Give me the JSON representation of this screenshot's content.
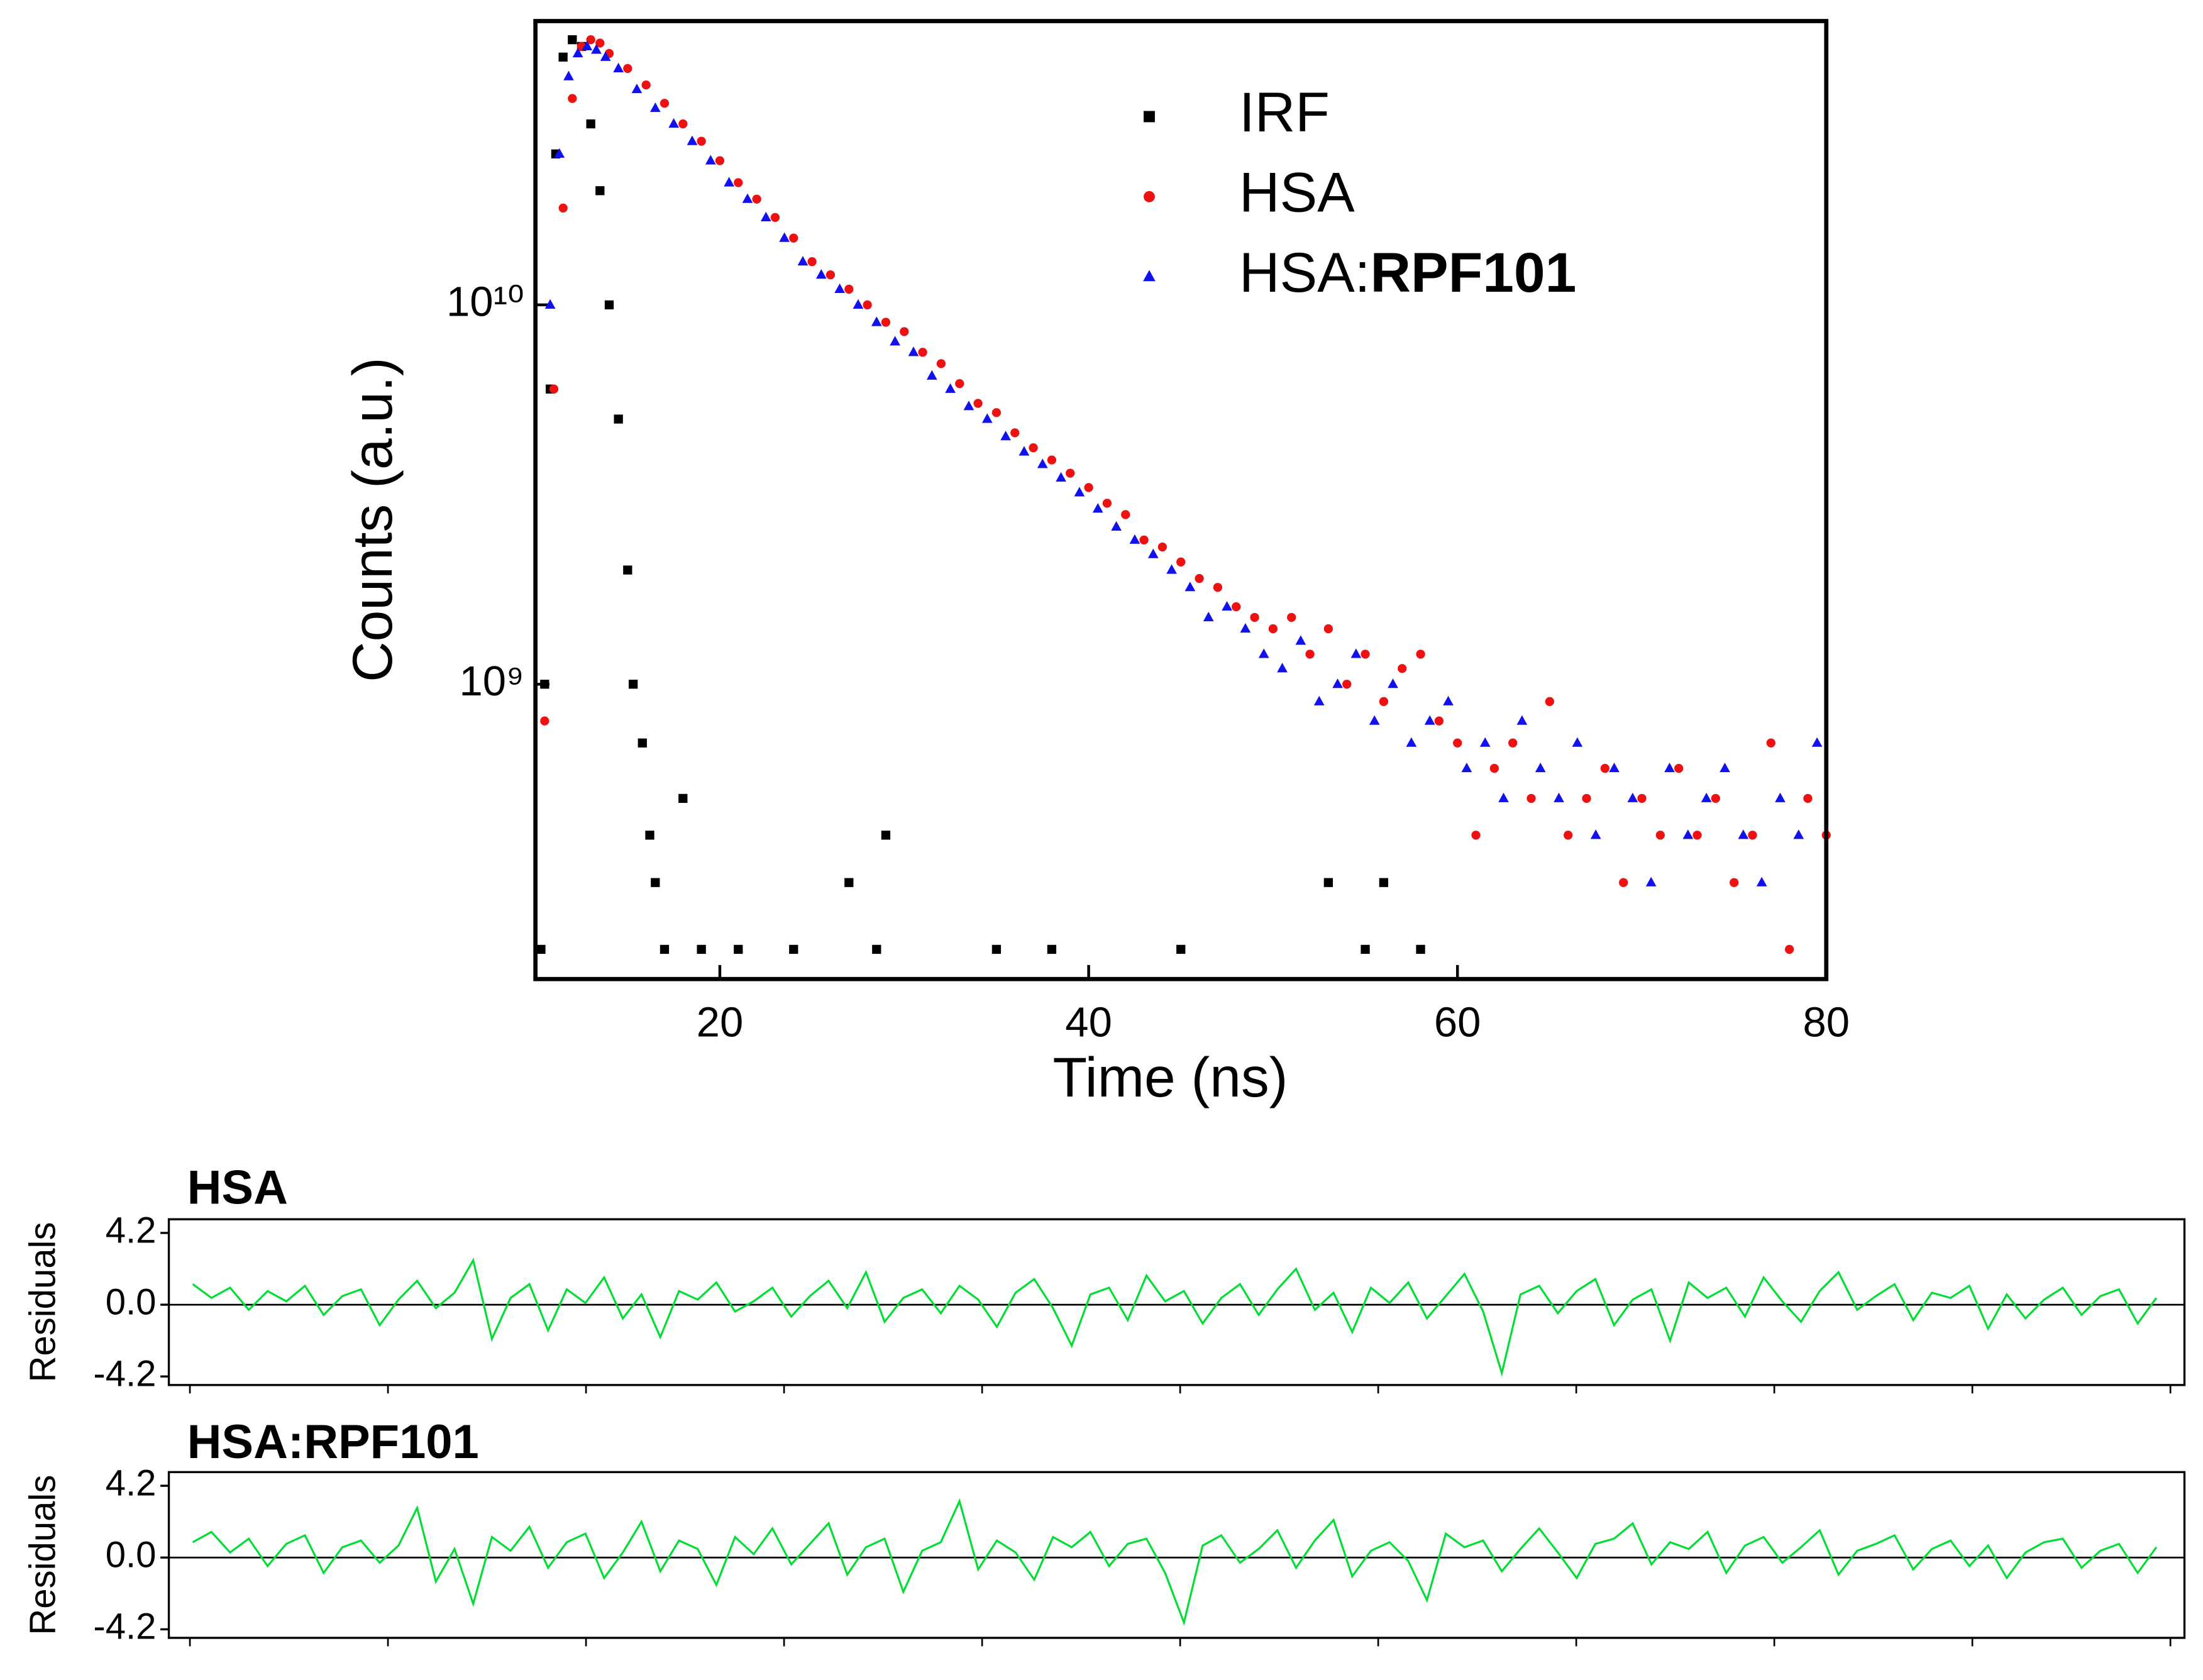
{
  "chart_data": [
    {
      "type": "scatter",
      "xlabel": "Time (ns)",
      "ylabel": "Counts (a.u.)",
      "xlim": [
        10,
        80
      ],
      "xticks": [
        20,
        40,
        60,
        80
      ],
      "yscale": "log",
      "ylim": [
        167000000.0,
        56000000000.0
      ],
      "yticks": [
        {
          "value": 1000000000.0,
          "label": "10⁹"
        },
        {
          "value": 10000000000.0,
          "label": "10¹⁰"
        }
      ],
      "legend": "upper right",
      "series": [
        {
          "name": "IRF",
          "color": "#000000",
          "marker": "square",
          "x": [
            10.3,
            10.5,
            10.8,
            11.1,
            11.5,
            12,
            12.5,
            13,
            13.5,
            14,
            14.5,
            15,
            15.3,
            15.8,
            16.2,
            16.5,
            17,
            18,
            19,
            21,
            24,
            27,
            28.5,
            29,
            35,
            38,
            45,
            53,
            55,
            56,
            58
          ],
          "values": [
            200000000.0,
            1000000000.0,
            6000000000.0,
            25000000000.0,
            45000000000.0,
            50000000000.0,
            48000000000.0,
            30000000000.0,
            20000000000.0,
            10000000000.0,
            5000000000.0,
            2000000000.0,
            1000000000.0,
            700000000.0,
            400000000.0,
            300000000.0,
            200000000.0,
            500000000.0,
            200000000.0,
            200000000.0,
            200000000.0,
            300000000.0,
            200000000.0,
            400000000.0,
            200000000.0,
            200000000.0,
            200000000.0,
            300000000.0,
            200000000.0,
            300000000.0,
            200000000.0
          ]
        },
        {
          "name": "HSA",
          "color": "#ee1111",
          "marker": "circle",
          "x": [
            10.5,
            11,
            11.5,
            12,
            12.5,
            13,
            13.5,
            14,
            15,
            16,
            17,
            18,
            19,
            20,
            21,
            22,
            23,
            24,
            25,
            26,
            27,
            28,
            29,
            30,
            31,
            32,
            33,
            34,
            35,
            36,
            37,
            38,
            39,
            40,
            41,
            42,
            43,
            44,
            45,
            46,
            47,
            48,
            49,
            50,
            51,
            52,
            53,
            54,
            55,
            56,
            57,
            58,
            59,
            60,
            61,
            62,
            63,
            64,
            65,
            66,
            67,
            68,
            69,
            70,
            71,
            72,
            73,
            74,
            75,
            76,
            77,
            78,
            79,
            80
          ],
          "values": [
            800000000.0,
            6000000000.0,
            18000000000.0,
            35000000000.0,
            48000000000.0,
            50000000000.0,
            49000000000.0,
            46000000000.0,
            42000000000.0,
            38000000000.0,
            34000000000.0,
            30000000000.0,
            27000000000.0,
            24000000000.0,
            21000000000.0,
            19000000000.0,
            17000000000.0,
            15000000000.0,
            13000000000.0,
            12000000000.0,
            11000000000.0,
            10000000000.0,
            9000000000.0,
            8500000000.0,
            7500000000.0,
            7000000000.0,
            6200000000.0,
            5500000000.0,
            5200000000.0,
            4600000000.0,
            4200000000.0,
            3900000000.0,
            3600000000.0,
            3300000000.0,
            3000000000.0,
            2800000000.0,
            2400000000.0,
            2300000000.0,
            2100000000.0,
            1900000000.0,
            1800000000.0,
            1600000000.0,
            1500000000.0,
            1400000000.0,
            1500000000.0,
            1200000000.0,
            1400000000.0,
            1000000000.0,
            1200000000.0,
            900000000.0,
            1100000000.0,
            1200000000.0,
            800000000.0,
            700000000.0,
            400000000.0,
            600000000.0,
            700000000.0,
            500000000.0,
            900000000.0,
            400000000.0,
            500000000.0,
            600000000.0,
            300000000.0,
            500000000.0,
            400000000.0,
            600000000.0,
            400000000.0,
            500000000.0,
            300000000.0,
            400000000.0,
            700000000.0,
            200000000.0,
            500000000.0,
            400000000.0
          ]
        },
        {
          "name": "HSA:RPF101",
          "color": "#1111ee",
          "marker": "triangle",
          "x": [
            10.8,
            11.3,
            11.8,
            12.3,
            12.8,
            13.3,
            13.8,
            14.5,
            15.5,
            16.5,
            17.5,
            18.5,
            19.5,
            20.5,
            21.5,
            22.5,
            23.5,
            24.5,
            25.5,
            26.5,
            27.5,
            28.5,
            29.5,
            30.5,
            31.5,
            32.5,
            33.5,
            34.5,
            35.5,
            36.5,
            37.5,
            38.5,
            39.5,
            40.5,
            41.5,
            42.5,
            43.5,
            44.5,
            45.5,
            46.5,
            47.5,
            48.5,
            49.5,
            50.5,
            51.5,
            52.5,
            53.5,
            54.5,
            55.5,
            56.5,
            57.5,
            58.5,
            59.5,
            60.5,
            61.5,
            62.5,
            63.5,
            64.5,
            65.5,
            66.5,
            67.5,
            68.5,
            69.5,
            70.5,
            71.5,
            72.5,
            73.5,
            74.5,
            75.5,
            76.5,
            77.5,
            78.5,
            79.5
          ],
          "values": [
            10000000000.0,
            25000000000.0,
            40000000000.0,
            46000000000.0,
            48000000000.0,
            47000000000.0,
            45000000000.0,
            42000000000.0,
            37000000000.0,
            33000000000.0,
            30000000000.0,
            27000000000.0,
            24000000000.0,
            21000000000.0,
            19000000000.0,
            17000000000.0,
            15000000000.0,
            13000000000.0,
            12000000000.0,
            11000000000.0,
            10000000000.0,
            9000000000.0,
            8000000000.0,
            7500000000.0,
            6500000000.0,
            6000000000.0,
            5400000000.0,
            5000000000.0,
            4500000000.0,
            4100000000.0,
            3800000000.0,
            3500000000.0,
            3200000000.0,
            2900000000.0,
            2600000000.0,
            2400000000.0,
            2200000000.0,
            2000000000.0,
            1800000000.0,
            1500000000.0,
            1600000000.0,
            1400000000.0,
            1200000000.0,
            1100000000.0,
            1300000000.0,
            900000000.0,
            1000000000.0,
            1200000000.0,
            800000000.0,
            1000000000.0,
            700000000.0,
            800000000.0,
            900000000.0,
            600000000.0,
            700000000.0,
            500000000.0,
            800000000.0,
            600000000.0,
            500000000.0,
            700000000.0,
            400000000.0,
            600000000.0,
            500000000.0,
            300000000.0,
            600000000.0,
            400000000.0,
            500000000.0,
            600000000.0,
            400000000.0,
            300000000.0,
            500000000.0,
            400000000.0,
            700000000.0
          ]
        }
      ]
    },
    {
      "type": "line",
      "title": "HSA",
      "ylabel": "Residuals",
      "color": "#00dd33",
      "ylim": [
        -4.7,
        5.0
      ],
      "yticks": [
        {
          "value": 4.2,
          "label": "4.2"
        },
        {
          "value": 0,
          "label": "0.0"
        },
        -4.2
      ],
      "values": [
        1.2,
        0.4,
        1.0,
        -0.3,
        0.8,
        0.2,
        1.1,
        -0.6,
        0.5,
        0.9,
        -1.2,
        0.3,
        1.4,
        -0.2,
        0.7,
        2.6,
        -2.0,
        0.4,
        1.2,
        -1.5,
        0.9,
        0.1,
        1.6,
        -0.8,
        0.6,
        -1.9,
        0.8,
        0.3,
        1.3,
        -0.4,
        0.2,
        1.0,
        -0.7,
        0.5,
        1.4,
        -0.2,
        1.9,
        -1.0,
        0.4,
        0.9,
        -0.5,
        1.1,
        0.3,
        -1.3,
        0.7,
        1.5,
        -0.2,
        -2.4,
        0.6,
        1.0,
        -0.9,
        1.7,
        0.2,
        0.8,
        -1.1,
        0.4,
        1.2,
        -0.6,
        0.9,
        2.1,
        -0.3,
        0.7,
        -1.6,
        1.0,
        0.1,
        1.3,
        -0.8,
        0.5,
        1.8,
        -0.4,
        -4.0,
        0.6,
        1.1,
        -0.5,
        0.8,
        1.5,
        -1.2,
        0.3,
        0.9,
        -2.1,
        1.3,
        0.4,
        1.0,
        -0.7,
        1.6,
        0.2,
        -1.0,
        0.8,
        1.9,
        -0.3,
        0.5,
        1.2,
        -0.9,
        0.7,
        0.4,
        1.1,
        -1.4,
        0.6,
        -0.8,
        0.3,
        1.0,
        -0.6,
        0.5,
        0.9,
        -1.1,
        0.4
      ]
    },
    {
      "type": "line",
      "title": "HSA:RPF101",
      "ylabel": "Residuals",
      "color": "#00dd33",
      "ylim": [
        -4.7,
        5.0
      ],
      "yticks": [
        {
          "value": 4.2,
          "label": "4.2"
        },
        {
          "value": 0,
          "label": "0.0"
        },
        -4.2
      ],
      "values": [
        0.9,
        1.5,
        0.3,
        1.1,
        -0.5,
        0.8,
        1.3,
        -0.9,
        0.6,
        1.0,
        -0.3,
        0.7,
        2.9,
        -1.4,
        0.5,
        -2.7,
        1.2,
        0.4,
        1.8,
        -0.6,
        0.9,
        1.4,
        -1.2,
        0.3,
        2.1,
        -0.8,
        1.0,
        0.5,
        -1.6,
        1.2,
        0.2,
        1.7,
        -0.4,
        0.8,
        2.0,
        -1.0,
        0.6,
        1.1,
        -2.0,
        0.4,
        0.9,
        3.3,
        -0.7,
        1.0,
        0.3,
        -1.3,
        1.2,
        0.6,
        1.5,
        -0.5,
        0.8,
        1.1,
        -0.9,
        -3.8,
        0.7,
        1.3,
        -0.3,
        0.5,
        1.6,
        -0.6,
        1.0,
        2.2,
        -1.1,
        0.4,
        0.9,
        -0.2,
        -2.5,
        1.4,
        0.6,
        1.0,
        -0.8,
        0.5,
        1.7,
        0.3,
        -1.2,
        0.8,
        1.1,
        2.0,
        -0.4,
        0.9,
        0.5,
        1.5,
        -0.9,
        0.7,
        1.2,
        -0.3,
        0.6,
        1.6,
        -1.0,
        0.4,
        0.8,
        1.3,
        -0.7,
        0.5,
        1.0,
        -0.5,
        0.7,
        -1.2,
        0.3,
        0.9,
        1.1,
        -0.6,
        0.4,
        0.8,
        -0.9,
        0.6
      ]
    }
  ]
}
